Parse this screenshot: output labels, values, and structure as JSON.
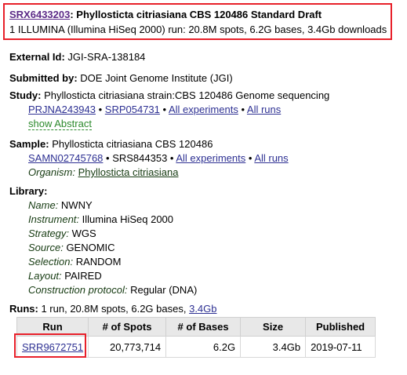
{
  "header": {
    "accession": "SRX6433203",
    "title": "Phyllosticta citriasiana CBS 120486 Standard Draft",
    "summary": "1 ILLUMINA (Illumina HiSeq 2000) run: 20.8M spots, 6.2G bases, 3.4Gb downloads"
  },
  "external_id": {
    "label": "External Id:",
    "value": "JGI-SRA-138184"
  },
  "submitted_by": {
    "label": "Submitted by:",
    "value": "DOE Joint Genome Institute (JGI)"
  },
  "study": {
    "label": "Study:",
    "value": "Phyllosticta citriasiana strain:CBS 120486 Genome sequencing",
    "links": [
      "PRJNA243943",
      "SRP054731",
      "All experiments",
      "All runs"
    ],
    "show_abstract": "show Abstract"
  },
  "sample": {
    "label": "Sample:",
    "value": "Phyllosticta citriasiana CBS 120486",
    "biosample": "SAMN02745768",
    "srs": "SRS844353",
    "links": [
      "All experiments",
      "All runs"
    ],
    "organism_label": "Organism:",
    "organism": "Phyllosticta citriasiana"
  },
  "library": {
    "label": "Library:",
    "fields": [
      {
        "k": "Name:",
        "v": "NWNY"
      },
      {
        "k": "Instrument:",
        "v": "Illumina HiSeq 2000"
      },
      {
        "k": "Strategy:",
        "v": "WGS"
      },
      {
        "k": "Source:",
        "v": "GENOMIC"
      },
      {
        "k": "Selection:",
        "v": "RANDOM"
      },
      {
        "k": "Layout:",
        "v": "PAIRED"
      },
      {
        "k": "Construction protocol:",
        "v": "Regular (DNA)"
      }
    ]
  },
  "runs": {
    "label": "Runs:",
    "summary": "1 run, 20.8M spots, 6.2G bases,",
    "download": "3.4Gb",
    "columns": [
      "Run",
      "# of Spots",
      "# of Bases",
      "Size",
      "Published"
    ],
    "rows": [
      [
        "SRR9672751",
        "20,773,714",
        "6.2G",
        "3.4Gb",
        "2019-07-11"
      ]
    ]
  },
  "colors": {
    "link": "#2e3193",
    "highlight": "#e8202a",
    "abstract": "#2d8a2d"
  }
}
